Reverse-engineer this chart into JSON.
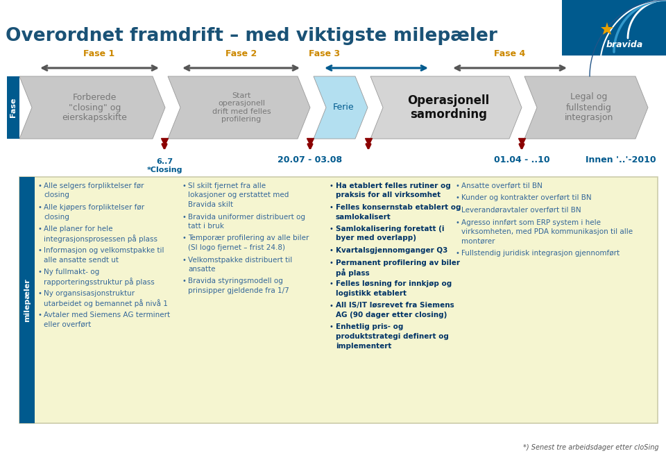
{
  "title": "Overordnet framdrift – med viktigste milepæler",
  "title_color": "#1a5276",
  "title_fontsize": 19,
  "bg_color": "#ffffff",
  "phase_label_color": "#cc8800",
  "phase_labels": [
    "Fase 1",
    "Fase 2",
    "Fase 3",
    "Fase 4"
  ],
  "phase_bar_color": "#005a8e",
  "chevron_texts": [
    "Forberede\n\"closing\" og\neierskapsskifte",
    "Start\noperasjonell\ndrift med felles\nprofilering",
    "Ferie",
    "Operasjonell\nsamordning",
    "Legal og\nfullstendig\nintegrasjon"
  ],
  "chevron_colors": [
    "#c8c8c8",
    "#c8c8c8",
    "#b3dff0",
    "#d0d0d0",
    "#c8c8c8"
  ],
  "chevron_text_colors": [
    "#777777",
    "#777777",
    "#005a8e",
    "#111111",
    "#777777"
  ],
  "chevron_bold": [
    false,
    false,
    false,
    true,
    false
  ],
  "chevron_fontsizes": [
    9,
    8,
    9,
    12,
    9
  ],
  "milestone_dates": [
    "6..7\n*Closing",
    "20.07 - 03.08",
    "01.04 - ..10",
    "Innen '..'-2010"
  ],
  "milestone_color": "#005a8e",
  "sidebar_text": "milepæler",
  "sidebar_color": "#005a8e",
  "content_bg": "#f5f5d0",
  "content_border": "#ccccaa",
  "bullet_color_1": "#336699",
  "bullet_color_3": "#003366",
  "col1_bullets": [
    "Alle selgers forpliktelser før closing",
    "Alle kjøpers forpliktelser før closing",
    "Alle planer for hele integrasjonsprosessen på plass",
    "Informasjon og velkomstpakke til alle ansatte sendt ut",
    "Ny fullmakt- og rapporteringsstruktur på plass",
    "Ny organsisasjonstruktur utarbeidet og bemannet  på nivå 1",
    "Avtaler med Siemens AG terminert eller overført"
  ],
  "col2_bullets": [
    "SI skilt fjernet fra alle lokasjoner og erstattet med Bravida skilt",
    "Bravida uniformer distribuert og tatt i bruk",
    "Temporær  profilering av alle biler (SI logo fjernet – frist 24.8)",
    "Velkomstpakke distribuert til ansatte",
    "Bravida styringsmodell og prinsipper gjeldende fra 1/7"
  ],
  "col3_bullets": [
    "Ha etablert felles rutiner og praksis for all virksomhet",
    "Felles konsernstab etablert og samlokalisert",
    "Samlokalisering foretatt (i byer med overlapp)",
    "Kvartalsgjennomganger Q3",
    "Permanent profilering av biler på plass",
    "Felles løsning for innkjøp og logistikk etablert",
    "All IS/IT løsrevet fra Siemens AG (90 dager etter closing)",
    "Enhetlig pris- og produktstrategi definert og implementert"
  ],
  "col4_bullets": [
    "Ansatte overført til BN",
    "Kunder og kontrakter overført til BN",
    "Leverandøravtaler overført til BN",
    "Agresso innført som ERP system i hele virksomheten, med PDA kommunikasjon til alle montører",
    "Fullstendig juridisk integrasjon gjennomført"
  ],
  "col3_bold": [
    0,
    1,
    2,
    3,
    4,
    5,
    6,
    7
  ],
  "footer_text": "*) Senest tre arbeidsdager etter cloSing"
}
